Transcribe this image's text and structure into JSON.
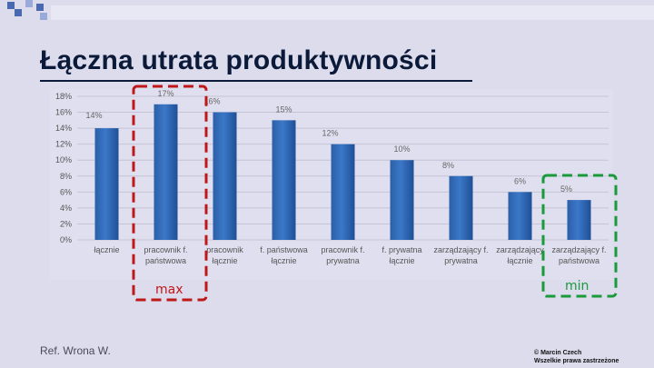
{
  "title": "Łączna utrata produktywności",
  "chart_data": {
    "type": "bar",
    "categories": [
      "łącznie",
      "pracownik f. państwowa",
      "pracownik łącznie",
      "f. państwowa łącznie",
      "pracownik f. prywatna",
      "f. prywatna łącznie",
      "zarządzający f. prywatna",
      "zarządzający łącznie",
      "zarządzający f. państwowa"
    ],
    "values": [
      14,
      17,
      16,
      15,
      12,
      10,
      8,
      6,
      5
    ],
    "data_labels": [
      "14%",
      "17%",
      "16%",
      "15%",
      "12%",
      "10%",
      "8%",
      "6%",
      "5%"
    ],
    "yticks": [
      "0%",
      "2%",
      "4%",
      "6%",
      "8%",
      "10%",
      "12%",
      "14%",
      "16%",
      "18%"
    ],
    "ylim": [
      0,
      18
    ],
    "bar_color": "#3b78c8",
    "grid": true
  },
  "annotations": {
    "max_label": "max",
    "min_label": "min",
    "max_color": "#c01818",
    "min_color": "#1a9a3a"
  },
  "footer": {
    "reference": "Ref. Wrona W.",
    "copyright_line1": "© Marcin Czech",
    "copyright_line2": "Wszelkie prawa zastrzeżone"
  }
}
